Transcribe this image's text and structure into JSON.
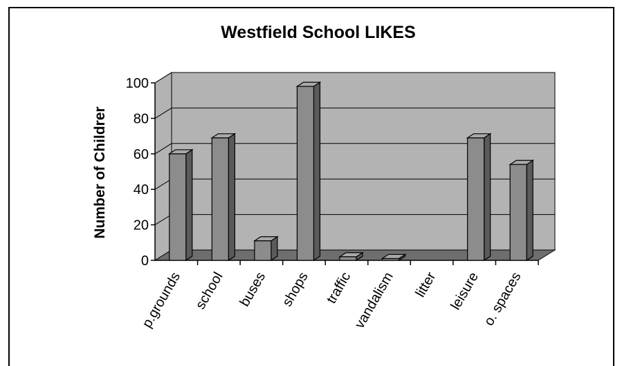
{
  "chart_data": {
    "type": "bar",
    "title": "Westfield School LIKES",
    "xlabel": "",
    "ylabel": "Number of Childrer",
    "categories": [
      "p.grounds",
      "school",
      "buses",
      "shops",
      "traffic",
      "vandalism",
      "litter",
      "leisure",
      "o. spaces"
    ],
    "values": [
      60,
      69,
      11,
      98,
      2,
      1,
      0,
      69,
      54
    ],
    "ylim": [
      0,
      100
    ],
    "yticks": [
      0,
      20,
      40,
      60,
      80,
      100
    ],
    "grid": true,
    "legend": "none",
    "colors": {
      "bar_front": "#8c8c8c",
      "bar_top": "#a8a8a8",
      "bar_side": "#5a5a5a",
      "plot_wall": "#b3b3b3",
      "plot_floor": "#6e6e6e"
    }
  }
}
